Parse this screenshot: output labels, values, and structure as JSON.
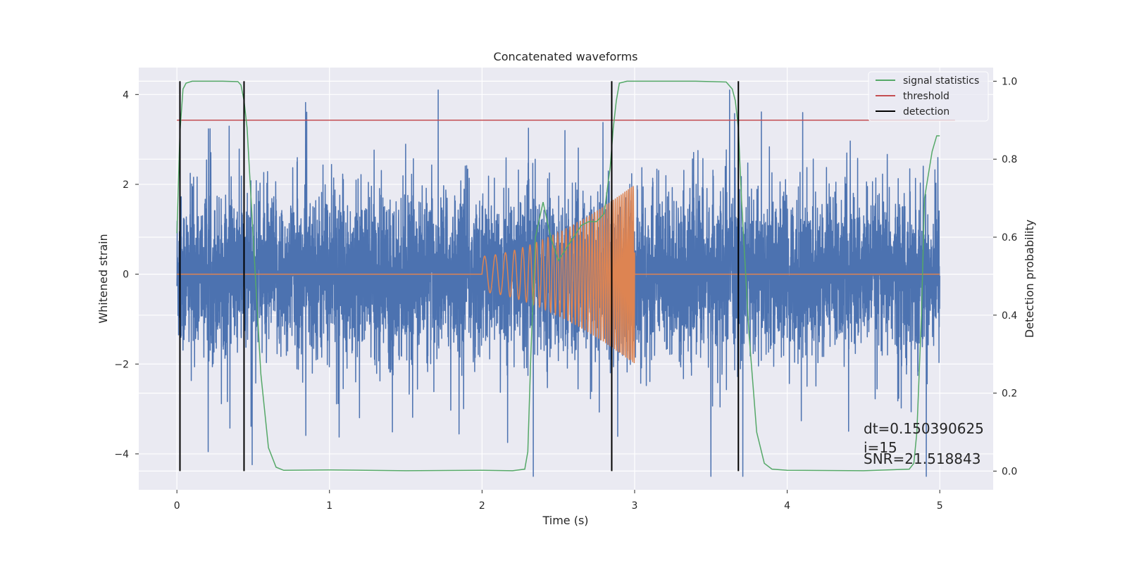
{
  "chart_data": {
    "type": "line",
    "title": "Concatenated waveforms",
    "xlabel": "Time (s)",
    "ylabel": "Whitened strain",
    "y2label": "Detection probability",
    "xlim": [
      -0.25,
      5.35
    ],
    "ylim": [
      -4.8,
      4.6
    ],
    "y2lim": [
      -0.048,
      1.035
    ],
    "xticks": [
      0,
      1,
      2,
      3,
      4,
      5
    ],
    "yticks": [
      -4,
      -2,
      0,
      2,
      4
    ],
    "y2ticks": [
      0.0,
      0.2,
      0.4,
      0.6,
      0.8,
      1.0
    ],
    "xtick_labels": [
      "0",
      "1",
      "2",
      "3",
      "4",
      "5"
    ],
    "ytick_labels": [
      "−4",
      "−2",
      "0",
      "2",
      "4"
    ],
    "y2tick_labels": [
      "0.0",
      "0.2",
      "0.4",
      "0.6",
      "0.8",
      "1.0"
    ],
    "grid": true,
    "legend_position": "top-right",
    "series": [
      {
        "name": "signal statistics",
        "axis": "right",
        "color": "#55a868",
        "x": [
          0.0,
          0.02,
          0.04,
          0.06,
          0.1,
          0.2,
          0.3,
          0.4,
          0.42,
          0.44,
          0.46,
          0.5,
          0.55,
          0.6,
          0.65,
          0.7,
          1.0,
          1.5,
          2.0,
          2.2,
          2.28,
          2.3,
          2.32,
          2.35,
          2.4,
          2.45,
          2.5,
          2.55,
          2.6,
          2.65,
          2.7,
          2.75,
          2.8,
          2.84,
          2.86,
          2.88,
          2.9,
          2.95,
          3.0,
          3.2,
          3.4,
          3.6,
          3.64,
          3.66,
          3.68,
          3.7,
          3.75,
          3.8,
          3.85,
          3.9,
          4.0,
          4.5,
          4.8,
          4.83,
          4.85,
          4.88,
          4.9,
          4.95,
          4.98,
          5.0
        ],
        "y": [
          0.61,
          0.87,
          0.98,
          0.995,
          1.0,
          1.0,
          1.0,
          0.999,
          0.99,
          0.95,
          0.88,
          0.6,
          0.25,
          0.06,
          0.01,
          0.002,
          0.003,
          0.001,
          0.002,
          0.001,
          0.005,
          0.05,
          0.3,
          0.6,
          0.69,
          0.6,
          0.54,
          0.57,
          0.6,
          0.63,
          0.64,
          0.64,
          0.66,
          0.78,
          0.88,
          0.95,
          0.995,
          1.0,
          1.0,
          1.0,
          1.0,
          0.998,
          0.98,
          0.95,
          0.88,
          0.7,
          0.35,
          0.1,
          0.02,
          0.005,
          0.002,
          0.001,
          0.005,
          0.02,
          0.1,
          0.4,
          0.7,
          0.82,
          0.86,
          0.86
        ]
      },
      {
        "name": "threshold",
        "axis": "right",
        "color": "#c44e52",
        "x": [
          0.0,
          5.1
        ],
        "y": [
          0.9,
          0.9
        ]
      },
      {
        "name": "detection",
        "axis": "right",
        "color": "#000000",
        "x": [
          0.02,
          0.44,
          2.85,
          3.68
        ],
        "y_range": [
          0.0,
          1.0
        ]
      },
      {
        "name": "",
        "axis": "left",
        "kind": "noise",
        "color": "#4c72b0",
        "x_range": [
          0.0,
          5.0
        ],
        "samples": 6000,
        "std": 0.85,
        "y_range_observed": [
          -4.5,
          4.1
        ]
      },
      {
        "name": "",
        "axis": "left",
        "kind": "chirp",
        "color": "#dd8452",
        "x_range": [
          2.0,
          3.0
        ],
        "amplitude_start": 0.4,
        "amplitude_end": 2.0,
        "frequency_start_hz": 14,
        "frequency_end_hz": 95,
        "baseline": 0.0
      }
    ],
    "annotations": [
      {
        "text": "dt=0.150390625",
        "x": 4.5,
        "y": -3.5
      },
      {
        "text": " i=15",
        "x": 4.5,
        "y": -3.9
      },
      {
        "text": "SNR=21.518843",
        "x": 4.5,
        "y": -4.2
      }
    ]
  }
}
